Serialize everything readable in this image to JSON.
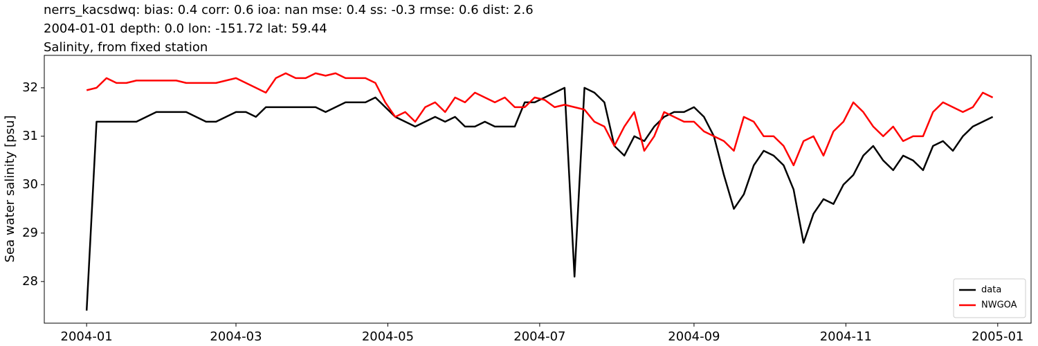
{
  "chart_data": {
    "type": "line",
    "title_lines": [
      "nerrs_kacsdwq: bias: 0.4  corr: 0.6  ioa: nan  mse: 0.4  ss: -0.3  rmse: 0.6  dist: 2.6",
      "2004-01-01 depth: 0.0 lon: -151.72 lat: 59.44",
      "Salinity, from fixed station"
    ],
    "ylabel": "Sea water salinity [psu]",
    "x": [
      0,
      4,
      8,
      12,
      16,
      20,
      24,
      28,
      32,
      36,
      40,
      44,
      48,
      52,
      56,
      60,
      64,
      68,
      72,
      76,
      80,
      84,
      88,
      92,
      96,
      100,
      104,
      108,
      112,
      116,
      120,
      124,
      128,
      132,
      136,
      140,
      144,
      148,
      152,
      156,
      160,
      164,
      168,
      172,
      176,
      180,
      184,
      188,
      192,
      196,
      200,
      204,
      208,
      212,
      216,
      220,
      224,
      228,
      232,
      236,
      240,
      244,
      248,
      252,
      256,
      260,
      264,
      268,
      272,
      276,
      280,
      284,
      288,
      292,
      296,
      300,
      304,
      308,
      312,
      316,
      320,
      324,
      328,
      332,
      336,
      340,
      344,
      348,
      352,
      356,
      360,
      364
    ],
    "series": [
      {
        "name": "data",
        "color": "#000000",
        "values": [
          27.4,
          31.3,
          31.3,
          31.3,
          31.3,
          31.3,
          31.4,
          31.5,
          31.5,
          31.5,
          31.5,
          31.4,
          31.3,
          31.3,
          31.4,
          31.5,
          31.5,
          31.4,
          31.6,
          31.6,
          31.6,
          31.6,
          31.6,
          31.6,
          31.5,
          31.6,
          31.7,
          31.7,
          31.7,
          31.8,
          31.6,
          31.4,
          31.3,
          31.2,
          31.3,
          31.4,
          31.3,
          31.4,
          31.2,
          31.2,
          31.3,
          31.2,
          31.2,
          31.2,
          31.7,
          31.7,
          31.8,
          31.9,
          32.0,
          28.1,
          32.0,
          31.9,
          31.7,
          30.8,
          30.6,
          31.0,
          30.9,
          31.2,
          31.4,
          31.5,
          31.5,
          31.6,
          31.4,
          31.0,
          30.2,
          29.5,
          29.8,
          30.4,
          30.7,
          30.6,
          30.4,
          29.9,
          28.8,
          29.4,
          29.7,
          29.6,
          30.0,
          30.2,
          30.6,
          30.8,
          30.5,
          30.3,
          30.6,
          30.5,
          30.3,
          30.8,
          30.9,
          30.7,
          31.0,
          31.2,
          31.3,
          31.4
        ]
      },
      {
        "name": "NWGOA",
        "color": "#ff0000",
        "values": [
          31.95,
          32.0,
          32.2,
          32.1,
          32.1,
          32.15,
          32.15,
          32.15,
          32.15,
          32.15,
          32.1,
          32.1,
          32.1,
          32.1,
          32.15,
          32.2,
          32.1,
          32.0,
          31.9,
          32.2,
          32.3,
          32.2,
          32.2,
          32.3,
          32.25,
          32.3,
          32.2,
          32.2,
          32.2,
          32.1,
          31.7,
          31.4,
          31.5,
          31.3,
          31.6,
          31.7,
          31.5,
          31.8,
          31.7,
          31.9,
          31.8,
          31.7,
          31.8,
          31.6,
          31.6,
          31.8,
          31.75,
          31.6,
          31.65,
          31.6,
          31.55,
          31.3,
          31.2,
          30.8,
          31.2,
          31.5,
          30.7,
          31.0,
          31.5,
          31.4,
          31.3,
          31.3,
          31.1,
          31.0,
          30.9,
          30.7,
          31.4,
          31.3,
          31.0,
          31.0,
          30.8,
          30.4,
          30.9,
          31.0,
          30.6,
          31.1,
          31.3,
          31.7,
          31.5,
          31.2,
          31.0,
          31.2,
          30.9,
          31.0,
          31.0,
          31.5,
          31.7,
          31.6,
          31.5,
          31.6,
          31.9,
          31.8
        ]
      }
    ],
    "xlim": [
      -17,
      379.4
    ],
    "xticks": [
      {
        "value": 0,
        "label": "2004-01"
      },
      {
        "value": 60,
        "label": "2004-03"
      },
      {
        "value": 121,
        "label": "2004-05"
      },
      {
        "value": 182,
        "label": "2004-07"
      },
      {
        "value": 244,
        "label": "2004-09"
      },
      {
        "value": 305,
        "label": "2004-11"
      },
      {
        "value": 366,
        "label": "2005-01"
      }
    ],
    "ylim": [
      27.14,
      32.67
    ],
    "yticks": [
      28,
      29,
      30,
      31,
      32
    ],
    "legend": "lower right"
  }
}
